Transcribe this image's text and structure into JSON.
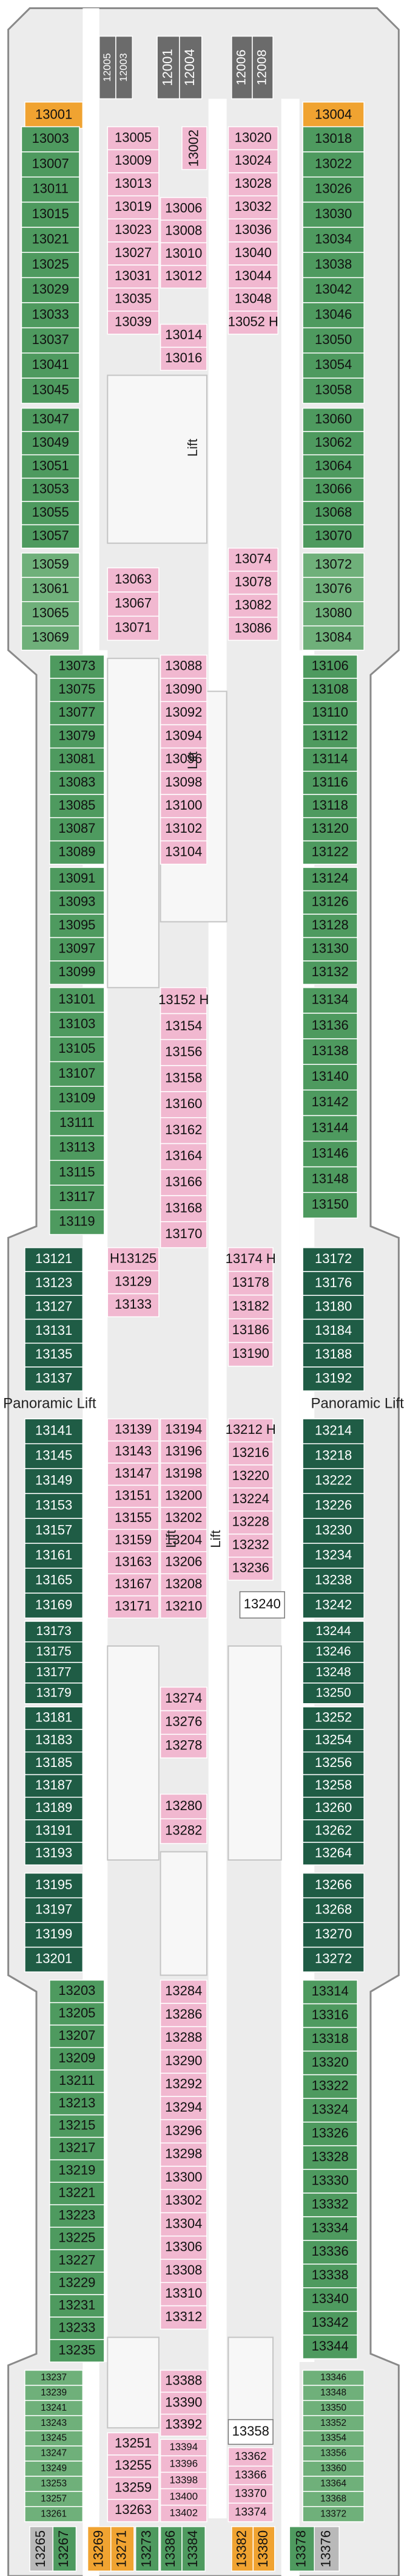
{
  "blocks": [
    {
      "cabins": [
        "13001"
      ]
    },
    {
      "cabins": [
        "13004"
      ]
    },
    {
      "cabins": [
        "12005",
        "12003"
      ]
    },
    {
      "cabins": [
        "12001",
        "12004"
      ]
    },
    {
      "cabins": [
        "12006",
        "12008"
      ]
    },
    {
      "cabins": [
        "13003",
        "13007",
        "13011",
        "13015",
        "13021",
        "13025",
        "13029",
        "13033",
        "13037",
        "13041",
        "13045"
      ]
    },
    {
      "cabins": [
        "13047",
        "13049",
        "13051",
        "13053",
        "13055",
        "13057"
      ]
    },
    {
      "cabins": [
        "13059",
        "13061",
        "13065",
        "13069"
      ]
    },
    {
      "cabins": [
        "13018",
        "13022",
        "13026",
        "13030",
        "13034",
        "13038",
        "13042",
        "13046",
        "13050",
        "13054",
        "13058"
      ]
    },
    {
      "cabins": [
        "13060",
        "13062",
        "13064",
        "13066",
        "13068",
        "13070"
      ]
    },
    {
      "cabins": [
        "13072",
        "13076",
        "13080",
        "13084"
      ]
    },
    {
      "cabins": [
        "13005",
        "13009",
        "13013",
        "13019",
        "13023",
        "13027",
        "13031",
        "13035",
        "13039"
      ]
    },
    {
      "cabins": [
        "13002"
      ]
    },
    {
      "cabins": [
        "13006",
        "13008",
        "13010",
        "13012"
      ]
    },
    {
      "cabins": [
        "13014",
        "13016"
      ]
    },
    {
      "cabins": [
        "13020",
        "13024",
        "13028",
        "13032",
        "13036",
        "13040",
        "13044",
        "13048",
        "13052 H"
      ]
    },
    {
      "cabins": [
        "13063",
        "13067",
        "13071"
      ]
    },
    {
      "cabins": [
        "13074",
        "13078",
        "13082",
        "13086"
      ]
    },
    {
      "cabins": [
        "13073",
        "13075",
        "13077",
        "13079",
        "13081",
        "13083",
        "13085",
        "13087",
        "13089"
      ]
    },
    {
      "cabins": [
        "13091",
        "13093",
        "13095",
        "13097",
        "13099"
      ]
    },
    {
      "cabins": [
        "13101",
        "13103",
        "13105",
        "13107",
        "13109",
        "13111",
        "13113",
        "13115",
        "13117",
        "13119"
      ]
    },
    {
      "cabins": [
        "13088",
        "13090",
        "13092",
        "13094",
        "13096",
        "13098",
        "13100",
        "13102",
        "13104"
      ]
    },
    {
      "cabins": [
        "13152 H",
        "13154",
        "13156",
        "13158",
        "13160",
        "13162",
        "13164",
        "13166",
        "13168",
        "13170"
      ]
    },
    {
      "cabins": [
        "13106",
        "13108",
        "13110",
        "13112",
        "13114",
        "13116",
        "13118",
        "13120",
        "13122"
      ]
    },
    {
      "cabins": [
        "13124",
        "13126",
        "13128",
        "13130",
        "13132"
      ]
    },
    {
      "cabins": [
        "13134",
        "13136",
        "13138",
        "13140",
        "13142",
        "13144",
        "13146",
        "13148",
        "13150"
      ]
    },
    {
      "cabins": [
        "13121",
        "13123",
        "13127",
        "13131",
        "13135",
        "13137"
      ]
    },
    {
      "cabins": [
        "13141",
        "13145",
        "13149",
        "13153",
        "13157",
        "13161",
        "13165",
        "13169"
      ]
    },
    {
      "cabins": [
        "13173",
        "13175",
        "13177",
        "13179"
      ]
    },
    {
      "cabins": [
        "13181",
        "13183",
        "13185",
        "13187",
        "13189",
        "13191",
        "13193"
      ]
    },
    {
      "cabins": [
        "H13125",
        "13129",
        "13133"
      ]
    },
    {
      "cabins": [
        "13139",
        "13143",
        "13147",
        "13151",
        "13155",
        "13159",
        "13163",
        "13167",
        "13171"
      ]
    },
    {
      "cabins": [
        "13194",
        "13196",
        "13198",
        "13200",
        "13202",
        "13204",
        "13206",
        "13208",
        "13210"
      ]
    },
    {
      "cabins": [
        "13174 H",
        "13178",
        "13182",
        "13186",
        "13190"
      ]
    },
    {
      "cabins": [
        "13212 H",
        "13216",
        "13220",
        "13224",
        "13228",
        "13232",
        "13236"
      ]
    },
    {
      "cabins": [
        "13240"
      ]
    },
    {
      "cabins": [
        "13172",
        "13176",
        "13180",
        "13184",
        "13188",
        "13192"
      ]
    },
    {
      "cabins": [
        "13214",
        "13218",
        "13222",
        "13226",
        "13230",
        "13234",
        "13238",
        "13242"
      ]
    },
    {
      "cabins": [
        "13244",
        "13246",
        "13248",
        "13250"
      ]
    },
    {
      "cabins": [
        "13252",
        "13254",
        "13256",
        "13258",
        "13260",
        "13262",
        "13264"
      ]
    },
    {
      "cabins": [
        "13274",
        "13276",
        "13278"
      ]
    },
    {
      "cabins": [
        "13280",
        "13282"
      ]
    },
    {
      "cabins": [
        "13195",
        "13197",
        "13199",
        "13201"
      ]
    },
    {
      "cabins": [
        "13266",
        "13268",
        "13270",
        "13272"
      ]
    },
    {
      "cabins": [
        "13203",
        "13205",
        "13207",
        "13209",
        "13211",
        "13213",
        "13215",
        "13217",
        "13219",
        "13221",
        "13223",
        "13225",
        "13227",
        "13229",
        "13231",
        "13233",
        "13235"
      ]
    },
    {
      "cabins": [
        "13284",
        "13286",
        "13288",
        "13290",
        "13292",
        "13294",
        "13296",
        "13298",
        "13300",
        "13302",
        "13304",
        "13306",
        "13308",
        "13310",
        "13312"
      ]
    },
    {
      "cabins": [
        "13314",
        "13316",
        "13318",
        "13320",
        "13322",
        "13324",
        "13326",
        "13328",
        "13330",
        "13332",
        "13334",
        "13336",
        "13338",
        "13340",
        "13342",
        "13344"
      ]
    },
    {
      "cabins": [
        "13237",
        "13239",
        "13241",
        "13243",
        "13245",
        "13247",
        "13249",
        "13253",
        "13257",
        "13261"
      ]
    },
    {
      "cabins": [
        "13346",
        "13348",
        "13350",
        "13352",
        "13354",
        "13356",
        "13360",
        "13364",
        "13368",
        "13372"
      ]
    },
    {
      "cabins": [
        "13251",
        "13255",
        "13259",
        "13263"
      ]
    },
    {
      "cabins": [
        "13388",
        "13390",
        "13392"
      ]
    },
    {
      "cabins": [
        "13394",
        "13396",
        "13398",
        "13400",
        "13402"
      ]
    },
    {
      "cabins": [
        "13358"
      ]
    },
    {
      "cabins": [
        "13362",
        "13366",
        "13370",
        "13374"
      ]
    },
    {
      "cabins": [
        "13265"
      ]
    },
    {
      "cabins": [
        "13267"
      ]
    },
    {
      "cabins": [
        "13269"
      ]
    },
    {
      "cabins": [
        "13271"
      ]
    },
    {
      "cabins": [
        "13273"
      ]
    },
    {
      "cabins": [
        "13386"
      ]
    },
    {
      "cabins": [
        "13384"
      ]
    },
    {
      "cabins": [
        "13382"
      ]
    },
    {
      "cabins": [
        "13380"
      ]
    },
    {
      "cabins": [
        "13378"
      ]
    },
    {
      "cabins": [
        "13376"
      ]
    }
  ],
  "labels": [
    "Lift",
    "Lift",
    "Lift",
    "Lift",
    "Panoramic Lift",
    "Panoramic Lift"
  ]
}
